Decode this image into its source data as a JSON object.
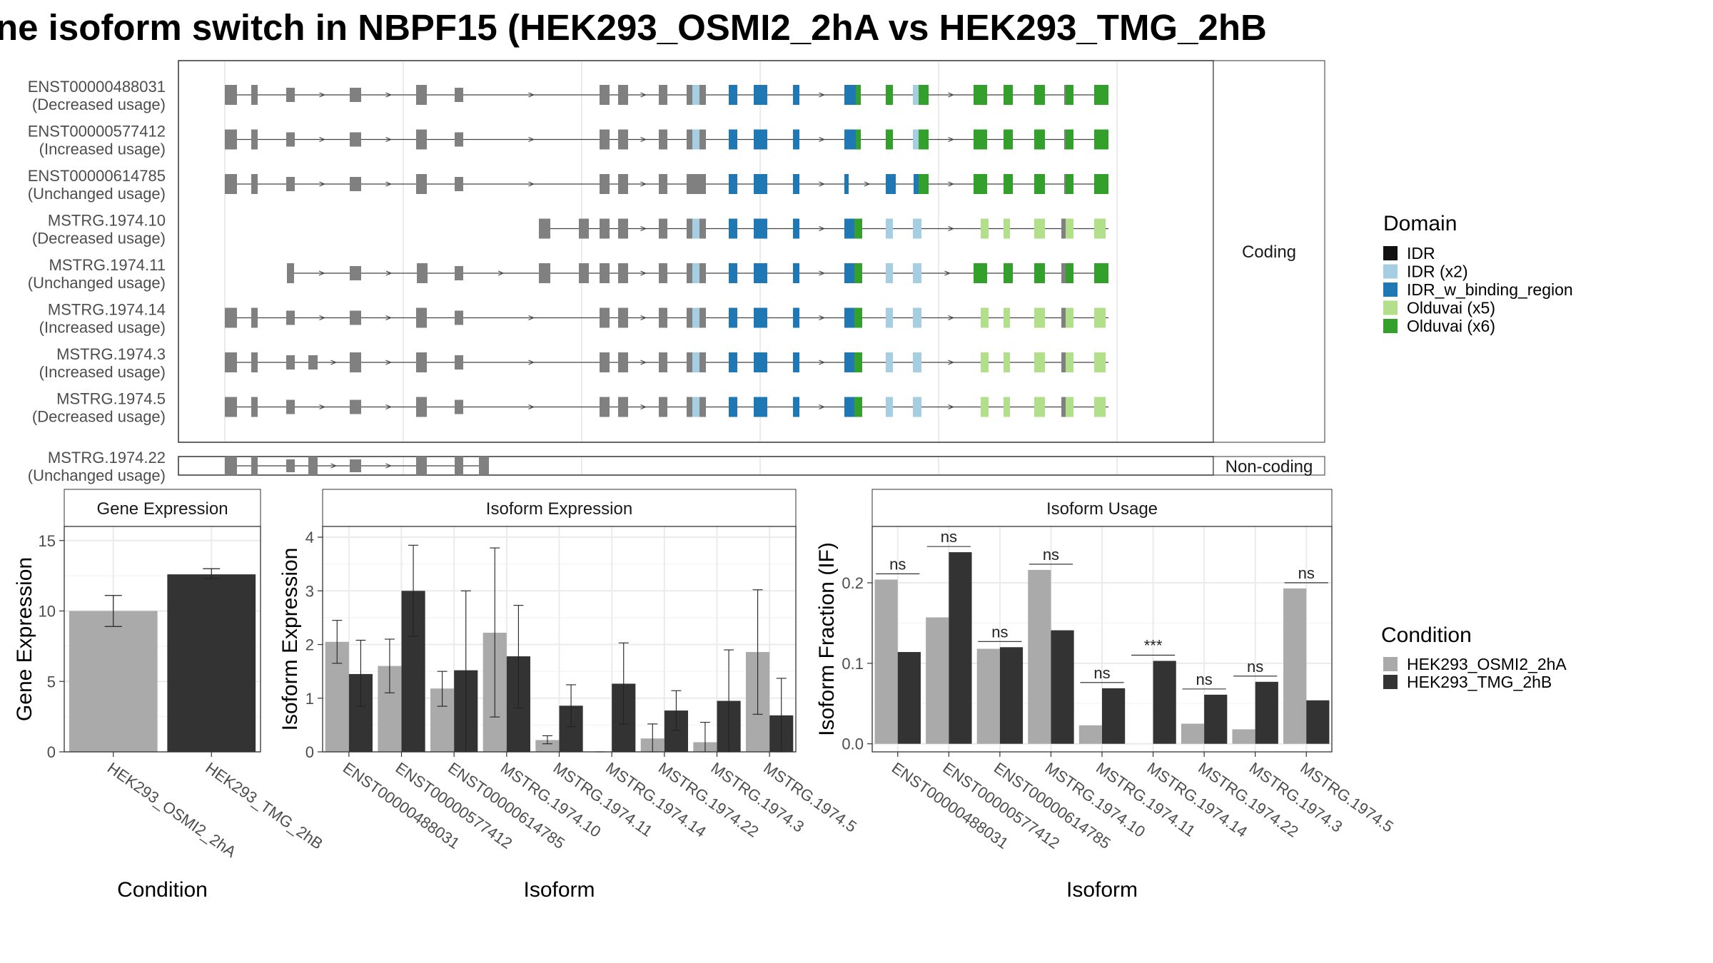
{
  "title": "ne isoform switch in NBPF15 (HEK293_OSMI2_2hA vs HEK293_TMG_2hB",
  "colors": {
    "IDR": "#111111",
    "IDR (x2)": "#a6cee3",
    "IDR_w_binding_region": "#1f78b4",
    "Olduvai (x5)": "#b2df8a",
    "Olduvai (x6)": "#33a02c",
    "noncoding_exon": "#808080",
    "cond1": "#aaaaaa",
    "cond2": "#333333",
    "grid": "#ebebeb"
  },
  "structure": {
    "coding_strip": "Coding",
    "noncoding_strip": "Non-coding",
    "transcripts": [
      {
        "id": "ENST00000488031",
        "usage": "(Decreased usage)",
        "group": "coding",
        "template": "full",
        "utr": 320
      },
      {
        "id": "ENST00000577412",
        "usage": "(Increased usage)",
        "group": "coding",
        "template": "full",
        "utr": 308
      },
      {
        "id": "ENST00000614785",
        "usage": "(Unchanged usage)",
        "group": "coding",
        "template": "alt614",
        "utr": 305
      },
      {
        "id": "MSTRG.1974.10",
        "usage": "(Decreased usage)",
        "group": "coding",
        "template": "mstrg10",
        "utr": 292
      },
      {
        "id": "MSTRG.1974.11",
        "usage": "(Unchanged usage)",
        "group": "coding",
        "template": "mstrg11",
        "utr": 279
      },
      {
        "id": "MSTRG.1974.14",
        "usage": "(Increased usage)",
        "group": "coding",
        "template": "mstrg14",
        "utr": 251
      },
      {
        "id": "MSTRG.1974.3",
        "usage": "(Increased usage)",
        "group": "coding",
        "template": "mstrg3",
        "utr": 308
      },
      {
        "id": "MSTRG.1974.5",
        "usage": "(Decreased usage)",
        "group": "coding",
        "template": "mstrg5",
        "utr": 305
      },
      {
        "id": "MSTRG.1974.22",
        "usage": "(Unchanged usage)",
        "group": "noncoding",
        "template": "nc",
        "utr": 0
      }
    ],
    "domain_legend_title": "Domain",
    "domain_legend": [
      "IDR",
      "IDR (x2)",
      "IDR_w_binding_region",
      "Olduvai (x5)",
      "Olduvai (x6)"
    ]
  },
  "condition_legend": {
    "title": "Condition",
    "items": [
      "HEK293_OSMI2_2hA",
      "HEK293_TMG_2hB"
    ]
  },
  "chart_data": [
    {
      "type": "bar",
      "title": "Gene Expression",
      "xlabel": "Condition",
      "ylabel": "Gene Expression",
      "ylim": [
        0,
        16
      ],
      "yticks": [
        0,
        5,
        10,
        15
      ],
      "categories": [
        "HEK293_OSMI2_2hA",
        "HEK293_TMG_2hB"
      ],
      "values": [
        10.0,
        12.6
      ],
      "errors": [
        [
          8.9,
          11.1
        ],
        [
          12.3,
          13.0
        ]
      ]
    },
    {
      "type": "bar",
      "title": "Isoform Expression",
      "xlabel": "Isoform",
      "ylabel": "Isoform Expression",
      "ylim": [
        0,
        4.2
      ],
      "yticks": [
        0,
        1,
        2,
        3,
        4
      ],
      "categories": [
        "ENST00000488031",
        "ENST00000577412",
        "ENST00000614785",
        "MSTRG.1974.10",
        "MSTRG.1974.11",
        "MSTRG.1974.14",
        "MSTRG.1974.22",
        "MSTRG.1974.3",
        "MSTRG.1974.5"
      ],
      "series": [
        {
          "name": "HEK293_OSMI2_2hA",
          "values": [
            2.05,
            1.6,
            1.18,
            2.22,
            0.22,
            0.0,
            0.25,
            0.18,
            1.86
          ],
          "errors": [
            [
              1.65,
              2.45
            ],
            [
              1.1,
              2.1
            ],
            [
              0.85,
              1.5
            ],
            [
              0.65,
              3.8
            ],
            [
              0.15,
              0.3
            ],
            [
              0.0,
              0.0
            ],
            [
              0.0,
              0.52
            ],
            [
              0.0,
              0.55
            ],
            [
              0.7,
              3.02
            ]
          ]
        },
        {
          "name": "HEK293_TMG_2hB",
          "values": [
            1.45,
            3.0,
            1.52,
            1.78,
            0.86,
            1.27,
            0.77,
            0.95,
            0.68
          ],
          "errors": [
            [
              0.85,
              2.08
            ],
            [
              2.15,
              3.85
            ],
            [
              0.0,
              3.0
            ],
            [
              0.82,
              2.73
            ],
            [
              0.47,
              1.25
            ],
            [
              0.52,
              2.03
            ],
            [
              0.4,
              1.14
            ],
            [
              0.0,
              1.9
            ],
            [
              0.0,
              1.37
            ]
          ]
        }
      ]
    },
    {
      "type": "bar",
      "title": "Isoform Usage",
      "xlabel": "Isoform",
      "ylabel": "Isoform Fraction (IF)",
      "ylim": [
        -0.01,
        0.27
      ],
      "yticks": [
        0.0,
        0.1,
        0.2
      ],
      "ytick_labels": [
        "0.0",
        "0.1",
        "0.2"
      ],
      "categories": [
        "ENST00000488031",
        "ENST00000577412",
        "ENST00000614785",
        "MSTRG.1974.10",
        "MSTRG.1974.11",
        "MSTRG.1974.14",
        "MSTRG.1974.22",
        "MSTRG.1974.3",
        "MSTRG.1974.5"
      ],
      "series": [
        {
          "name": "HEK293_OSMI2_2hA",
          "values": [
            0.204,
            0.157,
            0.118,
            0.216,
            0.023,
            0.0,
            0.025,
            0.018,
            0.193
          ]
        },
        {
          "name": "HEK293_TMG_2hB",
          "values": [
            0.114,
            0.238,
            0.12,
            0.141,
            0.069,
            0.103,
            0.061,
            0.077,
            0.054
          ]
        }
      ],
      "significance": [
        "ns",
        "ns",
        "ns",
        "ns",
        "ns",
        "***",
        "ns",
        "ns",
        "ns"
      ]
    }
  ]
}
